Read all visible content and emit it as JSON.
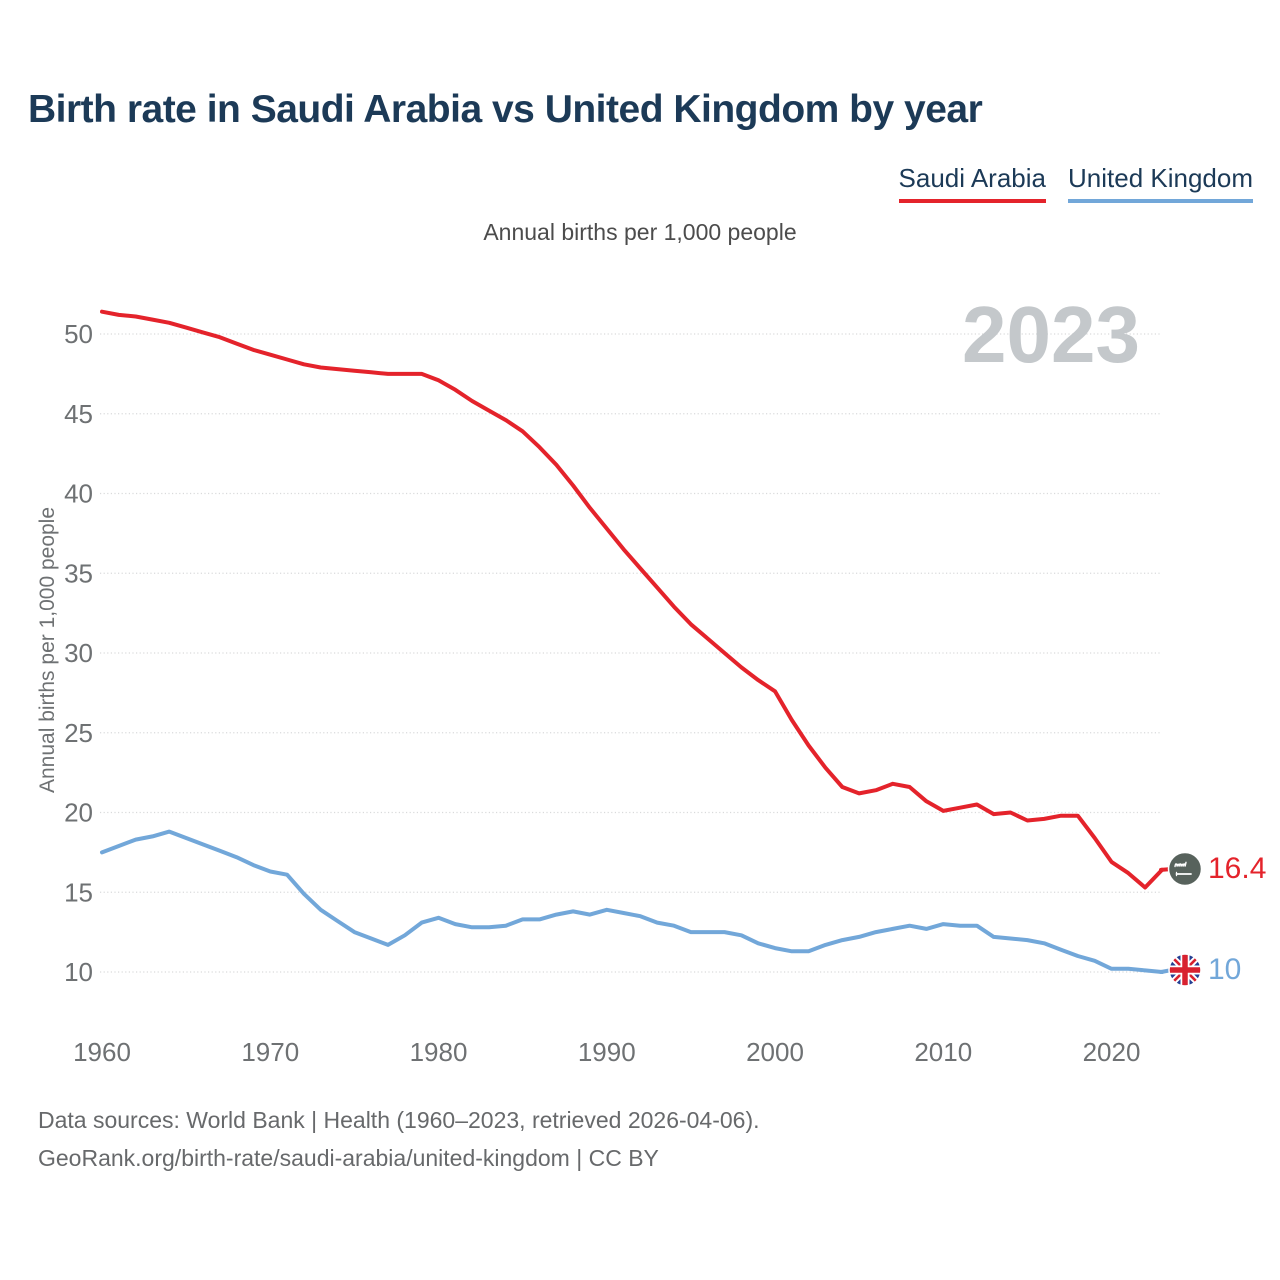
{
  "page": {
    "title": "Birth rate in Saudi Arabia vs United Kingdom by year",
    "subtitle": "Annual births per 1,000 people",
    "watermark": "2023"
  },
  "legend": {
    "items": [
      {
        "label": "Saudi Arabia",
        "color": "#e4232b"
      },
      {
        "label": "United Kingdom",
        "color": "#72a7d9"
      }
    ]
  },
  "footer": {
    "sources_line": "Data sources: World Bank | Health (1960–2023, retrieved 2026-04-06).",
    "link_line": "GeoRank.org/birth-rate/saudi-arabia/united-kingdom | CC BY"
  },
  "chart_data": {
    "type": "line",
    "title": "Birth rate in Saudi Arabia vs United Kingdom by year",
    "subtitle": "Annual births per 1,000 people",
    "xlabel": "",
    "ylabel": "Annual births per 1,000 people",
    "ylim": [
      8.5,
      53
    ],
    "xlim": [
      1960,
      2023
    ],
    "grid": true,
    "legend_position": "top-right",
    "y_ticks": [
      10,
      15,
      20,
      25,
      30,
      35,
      40,
      45,
      50
    ],
    "x_ticks": [
      1960,
      1970,
      1980,
      1990,
      2000,
      2010,
      2020
    ],
    "x": [
      1960,
      1961,
      1962,
      1963,
      1964,
      1965,
      1966,
      1967,
      1968,
      1969,
      1970,
      1971,
      1972,
      1973,
      1974,
      1975,
      1976,
      1977,
      1978,
      1979,
      1980,
      1981,
      1982,
      1983,
      1984,
      1985,
      1986,
      1987,
      1988,
      1989,
      1990,
      1991,
      1992,
      1993,
      1994,
      1995,
      1996,
      1997,
      1998,
      1999,
      2000,
      2001,
      2002,
      2003,
      2004,
      2005,
      2006,
      2007,
      2008,
      2009,
      2010,
      2011,
      2012,
      2013,
      2014,
      2015,
      2016,
      2017,
      2018,
      2019,
      2020,
      2021,
      2022,
      2023
    ],
    "series": [
      {
        "name": "Saudi Arabia",
        "color": "#e4232b",
        "end_label": "16.4",
        "values": [
          51.4,
          51.2,
          51.1,
          50.9,
          50.7,
          50.4,
          50.1,
          49.8,
          49.4,
          49.0,
          48.7,
          48.4,
          48.1,
          47.9,
          47.8,
          47.7,
          47.6,
          47.5,
          47.5,
          47.5,
          47.1,
          46.5,
          45.8,
          45.2,
          44.6,
          43.9,
          42.9,
          41.8,
          40.5,
          39.1,
          37.8,
          36.5,
          35.3,
          34.1,
          32.9,
          31.8,
          30.9,
          30.0,
          29.1,
          28.3,
          27.6,
          25.8,
          24.2,
          22.8,
          21.6,
          21.2,
          21.4,
          21.8,
          21.6,
          20.7,
          20.1,
          20.3,
          20.5,
          19.9,
          20.0,
          19.5,
          19.6,
          19.8,
          19.8,
          18.4,
          16.9,
          16.2,
          15.3,
          16.4
        ]
      },
      {
        "name": "United Kingdom",
        "color": "#72a7d9",
        "end_label": "10",
        "values": [
          17.5,
          17.9,
          18.3,
          18.5,
          18.8,
          18.4,
          18.0,
          17.6,
          17.2,
          16.7,
          16.3,
          16.1,
          14.9,
          13.9,
          13.2,
          12.5,
          12.1,
          11.7,
          12.3,
          13.1,
          13.4,
          13.0,
          12.8,
          12.8,
          12.9,
          13.3,
          13.3,
          13.6,
          13.8,
          13.6,
          13.9,
          13.7,
          13.5,
          13.1,
          12.9,
          12.5,
          12.5,
          12.5,
          12.3,
          11.8,
          11.5,
          11.3,
          11.3,
          11.7,
          12.0,
          12.2,
          12.5,
          12.7,
          12.9,
          12.7,
          13.0,
          12.9,
          12.9,
          12.2,
          12.1,
          12.0,
          11.8,
          11.4,
          11.0,
          10.7,
          10.2,
          10.2,
          10.1,
          10.0
        ]
      }
    ]
  }
}
